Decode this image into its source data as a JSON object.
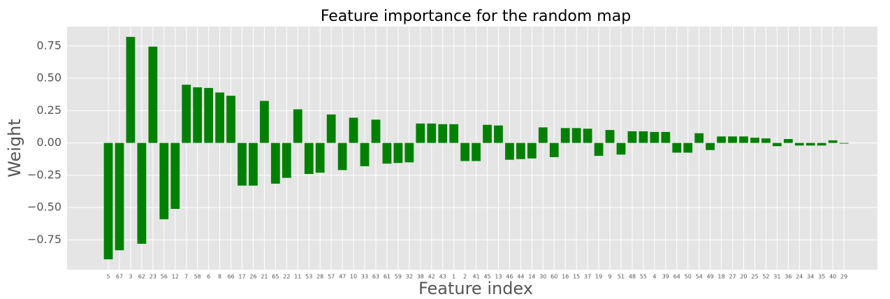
{
  "chart_data": {
    "type": "bar",
    "title": "Feature importance for the random map",
    "x_label": "Feature index",
    "y_label": "Weight",
    "categories": [
      "5",
      "67",
      "3",
      "62",
      "23",
      "56",
      "12",
      "7",
      "58",
      "6",
      "8",
      "66",
      "17",
      "26",
      "21",
      "65",
      "22",
      "11",
      "53",
      "28",
      "57",
      "47",
      "10",
      "33",
      "63",
      "61",
      "59",
      "32",
      "38",
      "42",
      "43",
      "1",
      "2",
      "41",
      "45",
      "13",
      "46",
      "44",
      "14",
      "30",
      "60",
      "16",
      "15",
      "37",
      "19",
      "9",
      "51",
      "48",
      "55",
      "4",
      "39",
      "64",
      "50",
      "54",
      "49",
      "18",
      "27",
      "20",
      "25",
      "52",
      "31",
      "36",
      "24",
      "34",
      "35",
      "40",
      "29"
    ],
    "values": [
      -0.9,
      -0.83,
      0.82,
      -0.78,
      0.745,
      -0.59,
      -0.51,
      0.45,
      0.43,
      0.425,
      0.39,
      0.365,
      -0.33,
      -0.33,
      0.325,
      -0.315,
      -0.27,
      0.26,
      -0.24,
      -0.23,
      0.22,
      -0.21,
      0.195,
      -0.18,
      0.18,
      -0.16,
      -0.155,
      -0.15,
      0.15,
      0.15,
      0.145,
      0.145,
      -0.14,
      -0.14,
      0.14,
      0.135,
      -0.13,
      -0.125,
      -0.12,
      0.12,
      -0.11,
      0.115,
      0.115,
      0.11,
      -0.1,
      0.1,
      -0.09,
      0.09,
      0.09,
      0.085,
      0.085,
      -0.075,
      -0.075,
      0.075,
      -0.055,
      0.05,
      0.05,
      0.05,
      0.04,
      0.035,
      -0.025,
      0.03,
      -0.02,
      -0.02,
      -0.02,
      0.02,
      -0.005
    ],
    "color": "#008000",
    "ylim": [
      -0.98,
      0.9
    ],
    "yticks": [
      {
        "value": -0.75,
        "label": "−0.75"
      },
      {
        "value": -0.5,
        "label": "−0.50"
      },
      {
        "value": -0.25,
        "label": "−0.25"
      },
      {
        "value": 0,
        "label": "0.00"
      },
      0.25,
      {
        "value": 0.5,
        "label": "0.50"
      },
      0.75
    ],
    "grid": true
  }
}
